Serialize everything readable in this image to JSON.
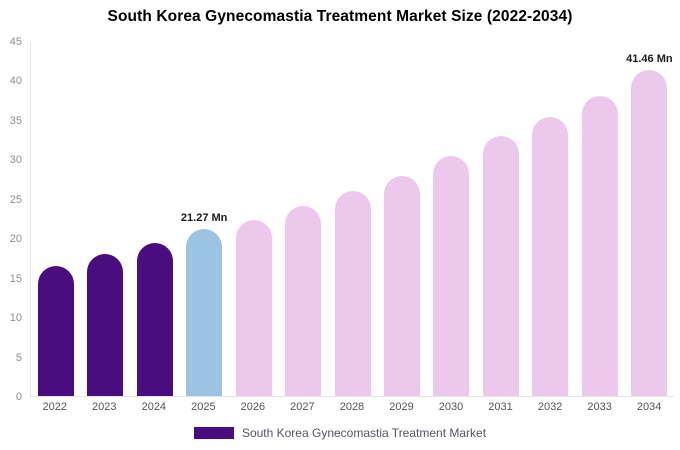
{
  "title": "South Korea Gynecomastia Treatment Market Size (2022-2034)",
  "legend": {
    "label": "South Korea Gynecomastia Treatment Market",
    "swatch_color": "#4a0d80"
  },
  "colors": {
    "historical_bar": "#4a0d80",
    "highlight_bar": "#9dc3e2",
    "forecast_bar": "#ecc9ec",
    "axis_tick_label": "#8e8e99",
    "x_axis_label": "#555555",
    "annotation_text": "#1a1a1a",
    "background": "#ffffff"
  },
  "chart_data": {
    "type": "bar",
    "title": "South Korea Gynecomastia Treatment Market Size (2022-2034)",
    "categories": [
      "2022",
      "2023",
      "2024",
      "2025",
      "2026",
      "2027",
      "2028",
      "2029",
      "2030",
      "2031",
      "2032",
      "2033",
      "2034"
    ],
    "values": [
      16.5,
      18.0,
      19.4,
      21.27,
      22.4,
      24.1,
      26.1,
      28.0,
      30.5,
      33.0,
      35.5,
      38.2,
      41.46
    ],
    "unit": "Mn",
    "bar_colors": [
      "#4a0d80",
      "#4a0d80",
      "#4a0d80",
      "#9dc3e2",
      "#ecc9ec",
      "#ecc9ec",
      "#ecc9ec",
      "#ecc9ec",
      "#ecc9ec",
      "#ecc9ec",
      "#ecc9ec",
      "#ecc9ec",
      "#ecc9ec"
    ],
    "annotations": [
      {
        "category": "2025",
        "text": "21.27 Mn"
      },
      {
        "category": "2034",
        "text": "41.46 Mn"
      }
    ],
    "xlabel": "",
    "ylabel": "",
    "ylim": [
      0,
      45
    ],
    "yticks": [
      0,
      5,
      10,
      15,
      20,
      25,
      30,
      35,
      40,
      45
    ],
    "grid": false,
    "legend_position": "bottom",
    "legend_entries": [
      "South Korea Gynecomastia Treatment Market"
    ]
  }
}
